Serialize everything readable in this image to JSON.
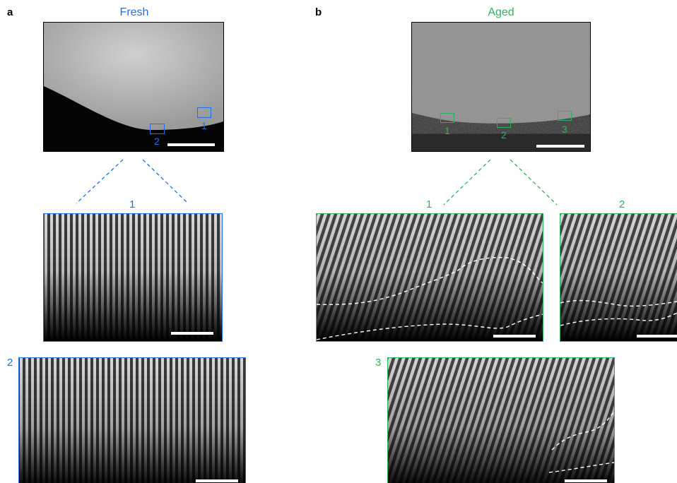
{
  "colors": {
    "fresh": "#1f6fe5",
    "aged": "#2db35d"
  },
  "panel_a": {
    "letter": "a",
    "title": "Fresh",
    "rois": [
      "1",
      "2"
    ],
    "zoom1_label": "1",
    "zoom2_label": "2"
  },
  "panel_b": {
    "letter": "b",
    "title": "Aged",
    "rois": [
      "1",
      "2",
      "3"
    ],
    "zoom1_label": "1",
    "zoom2_label": "2",
    "zoom3_label": "3"
  }
}
